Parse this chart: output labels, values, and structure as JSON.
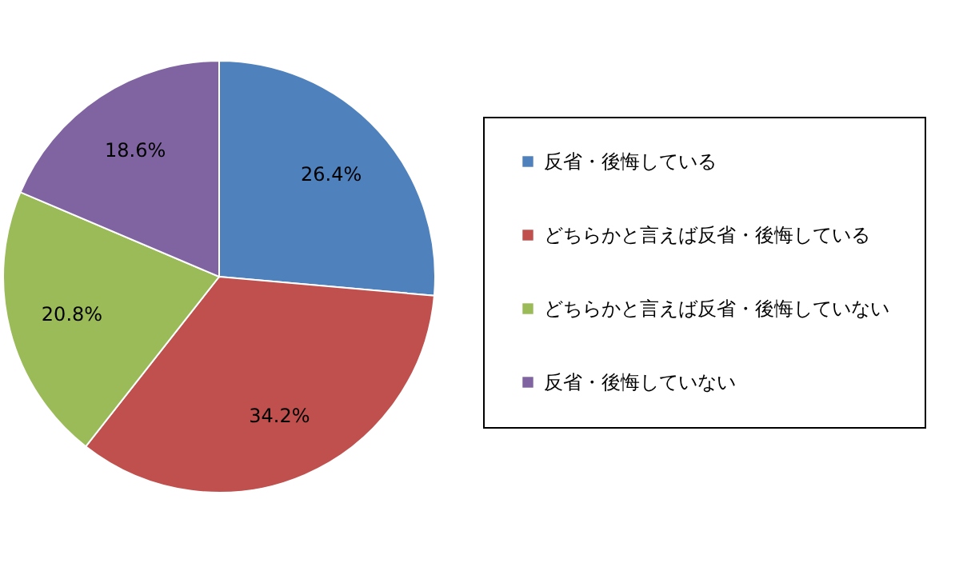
{
  "chart_data": {
    "type": "pie",
    "categories": [
      "反省・後悔している",
      "どちらかと言えば反省・後悔している",
      "どちらかと言えば反省・後悔していない",
      "反省・後悔していない"
    ],
    "values": [
      26.4,
      34.2,
      20.8,
      18.6
    ],
    "colors": [
      "#4f81bd",
      "#c0504d",
      "#9bbb59",
      "#8064a2"
    ],
    "value_labels": [
      "26.4%",
      "34.2%",
      "20.8%",
      "18.6%"
    ],
    "legend": "right"
  }
}
